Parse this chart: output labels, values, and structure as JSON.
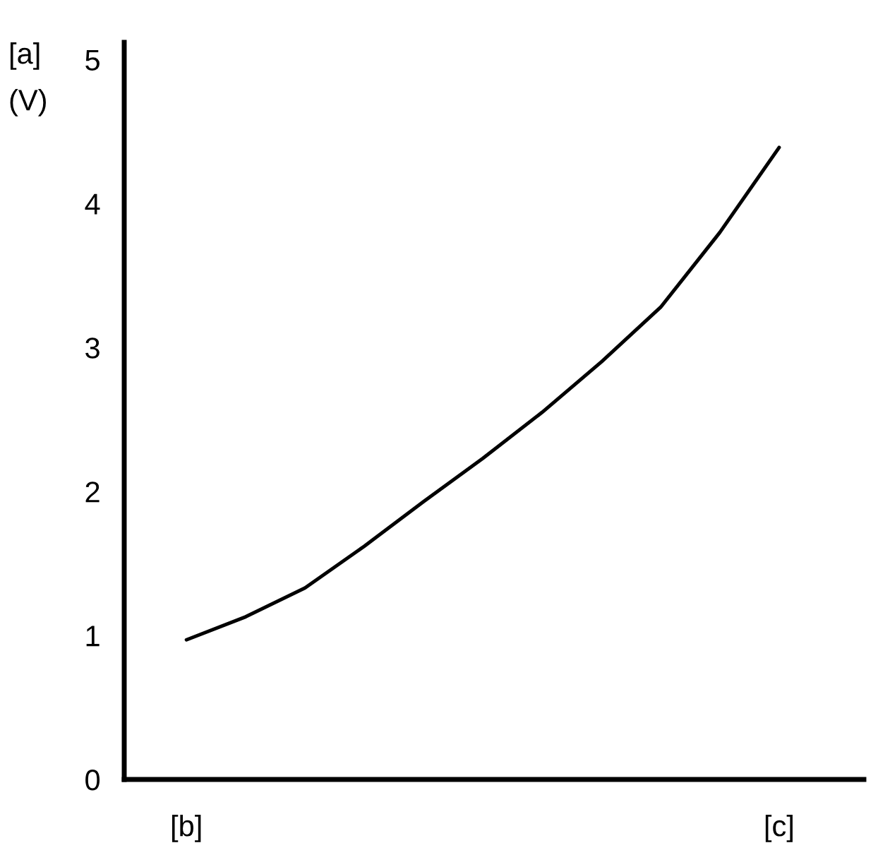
{
  "chart_data": {
    "type": "line",
    "ylabel": "[a]\n(V)",
    "categories": [
      "[b]",
      null,
      null,
      null,
      null,
      null,
      null,
      null,
      null,
      null,
      "[c]"
    ],
    "values": [
      0.97,
      1.13,
      1.33,
      1.62,
      1.93,
      2.23,
      2.55,
      2.9,
      3.28,
      3.8,
      4.39
    ],
    "color": "#000000",
    "ylim": [
      0,
      5.12
    ],
    "yticks": [
      0,
      1,
      2,
      3,
      4,
      5
    ],
    "grid": false,
    "marker": "none",
    "line_style": "solid"
  }
}
